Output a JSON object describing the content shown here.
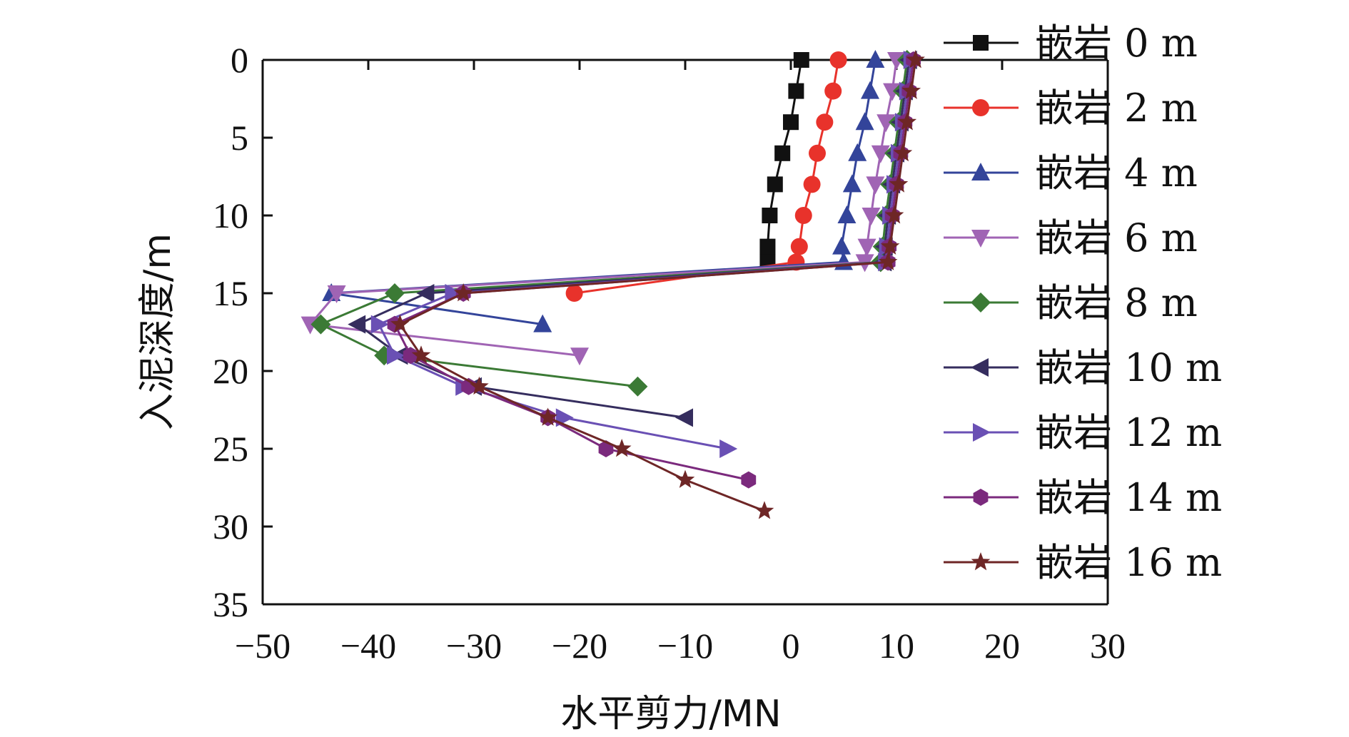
{
  "chart_data": {
    "type": "line",
    "title": "",
    "xlabel": "水平剪力/MN",
    "ylabel": "入泥深度/m",
    "xlim": [
      -50,
      30
    ],
    "ylim": [
      0,
      35
    ],
    "y_inverted": true,
    "x_axis_position": "top",
    "x_ticks": [
      "−50",
      "−40",
      "−30",
      "−20",
      "−10",
      "0",
      "10",
      "20",
      "30"
    ],
    "y_ticks": [
      "0",
      "5",
      "10",
      "15",
      "20",
      "25",
      "30",
      "35"
    ],
    "grid": false,
    "legend_position": "right",
    "series": [
      {
        "name": "嵌岩 0 m",
        "color": "#111111",
        "marker": "square",
        "points": [
          [
            1.0,
            0
          ],
          [
            0.5,
            2
          ],
          [
            0,
            4
          ],
          [
            -0.8,
            6
          ],
          [
            -1.5,
            8
          ],
          [
            -2,
            10
          ],
          [
            -2.2,
            12
          ],
          [
            -2.2,
            13
          ]
        ]
      },
      {
        "name": "嵌岩 2 m",
        "color": "#e8322b",
        "marker": "circle",
        "points": [
          [
            4.5,
            0
          ],
          [
            4,
            2
          ],
          [
            3.2,
            4
          ],
          [
            2.5,
            6
          ],
          [
            2,
            8
          ],
          [
            1.2,
            10
          ],
          [
            0.8,
            12
          ],
          [
            0.5,
            13
          ],
          [
            -20.5,
            15
          ]
        ]
      },
      {
        "name": "嵌岩 4 m",
        "color": "#33449a",
        "marker": "triangle-up",
        "points": [
          [
            8,
            0
          ],
          [
            7.5,
            2
          ],
          [
            7,
            4
          ],
          [
            6.3,
            6
          ],
          [
            5.8,
            8
          ],
          [
            5.3,
            10
          ],
          [
            4.8,
            12
          ],
          [
            5,
            13
          ],
          [
            -43.5,
            15
          ],
          [
            -23.5,
            17
          ]
        ]
      },
      {
        "name": "嵌岩 6 m",
        "color": "#a064b4",
        "marker": "triangle-down",
        "points": [
          [
            10,
            0
          ],
          [
            9.6,
            2
          ],
          [
            9,
            4
          ],
          [
            8.5,
            6
          ],
          [
            8,
            8
          ],
          [
            7.6,
            10
          ],
          [
            7.2,
            12
          ],
          [
            7,
            13
          ],
          [
            -43,
            15
          ],
          [
            -45.5,
            17
          ],
          [
            -20,
            19
          ]
        ]
      },
      {
        "name": "嵌岩 8 m",
        "color": "#3b7a35",
        "marker": "diamond",
        "points": [
          [
            11,
            0
          ],
          [
            10.6,
            2
          ],
          [
            10.2,
            4
          ],
          [
            9.8,
            6
          ],
          [
            9.4,
            8
          ],
          [
            9,
            10
          ],
          [
            8.7,
            12
          ],
          [
            8.5,
            13
          ],
          [
            -37.5,
            15
          ],
          [
            -44.5,
            17
          ],
          [
            -38.5,
            19
          ],
          [
            -14.5,
            21
          ]
        ]
      },
      {
        "name": "嵌岩 10 m",
        "color": "#352d5e",
        "marker": "triangle-left",
        "points": [
          [
            11.2,
            0
          ],
          [
            10.8,
            2
          ],
          [
            10.4,
            4
          ],
          [
            10,
            6
          ],
          [
            9.6,
            8
          ],
          [
            9.2,
            10
          ],
          [
            8.9,
            12
          ],
          [
            8.8,
            13
          ],
          [
            -34.5,
            15
          ],
          [
            -41,
            17
          ],
          [
            -37,
            19
          ],
          [
            -30,
            21
          ],
          [
            -10,
            23
          ]
        ]
      },
      {
        "name": "嵌岩 12 m",
        "color": "#6a50b4",
        "marker": "triangle-right",
        "points": [
          [
            11.4,
            0
          ],
          [
            11,
            2
          ],
          [
            10.6,
            4
          ],
          [
            10.2,
            6
          ],
          [
            9.8,
            8
          ],
          [
            9.4,
            10
          ],
          [
            9.1,
            12
          ],
          [
            9,
            13
          ],
          [
            -32,
            15
          ],
          [
            -39,
            17
          ],
          [
            -37.5,
            19
          ],
          [
            -31,
            21
          ],
          [
            -21.5,
            23
          ],
          [
            -6,
            25
          ]
        ]
      },
      {
        "name": "嵌岩 14 m",
        "color": "#7b2a7d",
        "marker": "hexagon",
        "points": [
          [
            11.6,
            0
          ],
          [
            11.2,
            2
          ],
          [
            10.8,
            4
          ],
          [
            10.4,
            6
          ],
          [
            10,
            8
          ],
          [
            9.6,
            10
          ],
          [
            9.3,
            12
          ],
          [
            9.2,
            13
          ],
          [
            -31,
            15
          ],
          [
            -37.5,
            17
          ],
          [
            -36,
            19
          ],
          [
            -30.5,
            21
          ],
          [
            -23,
            23
          ],
          [
            -17.5,
            25
          ],
          [
            -4,
            27
          ]
        ]
      },
      {
        "name": "嵌岩 16 m",
        "color": "#6e2626",
        "marker": "star",
        "points": [
          [
            11.8,
            0
          ],
          [
            11.4,
            2
          ],
          [
            11,
            4
          ],
          [
            10.6,
            6
          ],
          [
            10.2,
            8
          ],
          [
            9.8,
            10
          ],
          [
            9.4,
            12
          ],
          [
            9.2,
            13
          ],
          [
            -31,
            15
          ],
          [
            -37,
            17
          ],
          [
            -35,
            19
          ],
          [
            -29.5,
            21
          ],
          [
            -23,
            23
          ],
          [
            -16,
            25
          ],
          [
            -10,
            27
          ],
          [
            -2.5,
            29
          ]
        ]
      }
    ]
  }
}
